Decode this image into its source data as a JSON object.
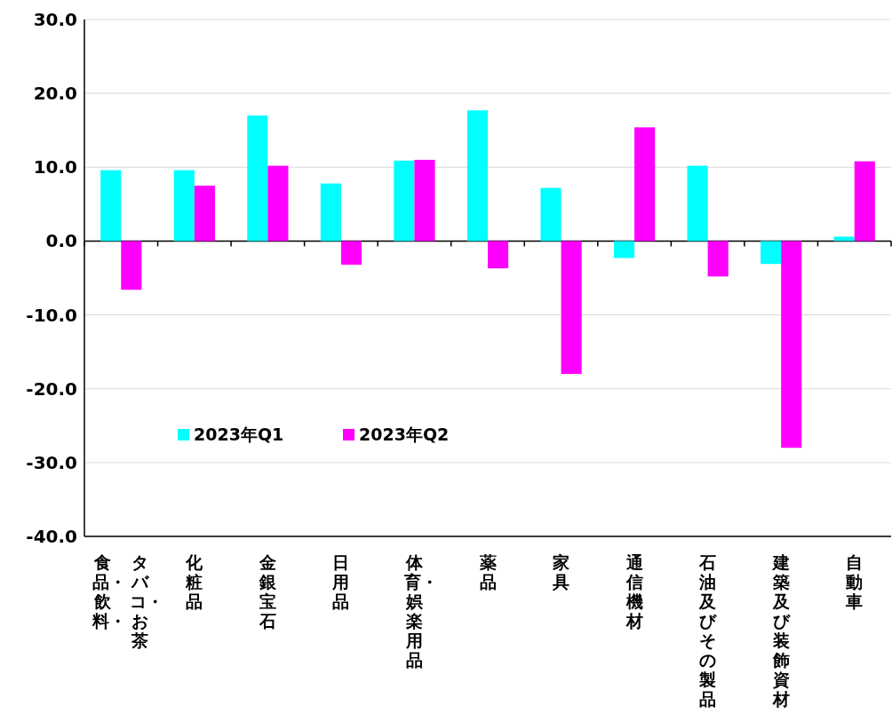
{
  "chart_data": {
    "type": "bar",
    "categories": [
      "食品・飲料・タバコ・お茶",
      "化粧品",
      "金銀宝石",
      "日用品",
      "体育・娯楽用品",
      "薬品",
      "家具",
      "通信機材",
      "石油及びその製品",
      "建築及び装飾資材",
      "自動車"
    ],
    "series": [
      {
        "name": "2023年Q1",
        "color": "#00ffff",
        "values": [
          9.6,
          9.6,
          17.0,
          7.8,
          10.9,
          17.7,
          7.2,
          -2.3,
          10.2,
          -3.1,
          0.6
        ]
      },
      {
        "name": "2023年Q2",
        "color": "#ff00ff",
        "values": [
          -6.6,
          7.5,
          10.2,
          -3.2,
          11.0,
          -3.7,
          -18.0,
          15.4,
          -4.8,
          -28.0,
          10.8
        ]
      }
    ],
    "ylim": [
      -40,
      30
    ],
    "yticks": [
      {
        "value": -40,
        "label": "-40.0"
      },
      {
        "value": -30,
        "label": "-30.0"
      },
      {
        "value": -20,
        "label": "-20.0"
      },
      {
        "value": -10,
        "label": "-10.0"
      },
      {
        "value": 0,
        "label": "0.0"
      },
      {
        "value": 10,
        "label": "10.0"
      },
      {
        "value": 20,
        "label": "20.0"
      },
      {
        "value": 30,
        "label": "30.0"
      }
    ],
    "grid": "y",
    "legend": "bottom left"
  }
}
